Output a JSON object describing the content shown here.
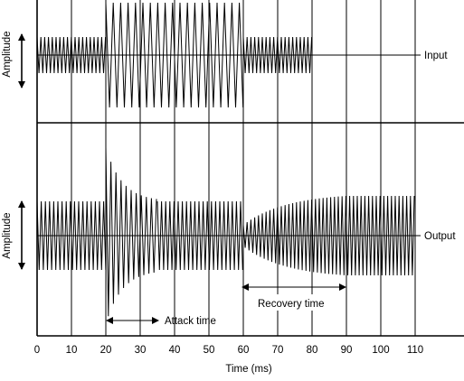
{
  "title": "",
  "x_axis": {
    "label": "Time (ms)",
    "ticks": [
      0,
      10,
      20,
      30,
      40,
      50,
      60,
      70,
      80,
      90,
      100,
      110
    ],
    "range": [
      0,
      110
    ]
  },
  "input_panel": {
    "y_label": "Amplitude",
    "trace_label": "Input",
    "segments": [
      {
        "from_ms": 0,
        "to_ms": 20,
        "level": "low"
      },
      {
        "from_ms": 20,
        "to_ms": 60,
        "level": "high"
      },
      {
        "from_ms": 60,
        "to_ms": 80,
        "level": "low"
      }
    ]
  },
  "output_panel": {
    "y_label": "Amplitude",
    "trace_label": "Output"
  },
  "annotations": {
    "attack": {
      "label": "Attack time",
      "from_ms": 20,
      "to_ms": 30
    },
    "recovery": {
      "label": "Recovery time",
      "from_ms": 60,
      "to_ms": 90
    }
  },
  "colors": {
    "ink": "#000000",
    "background": "#ffffff"
  }
}
